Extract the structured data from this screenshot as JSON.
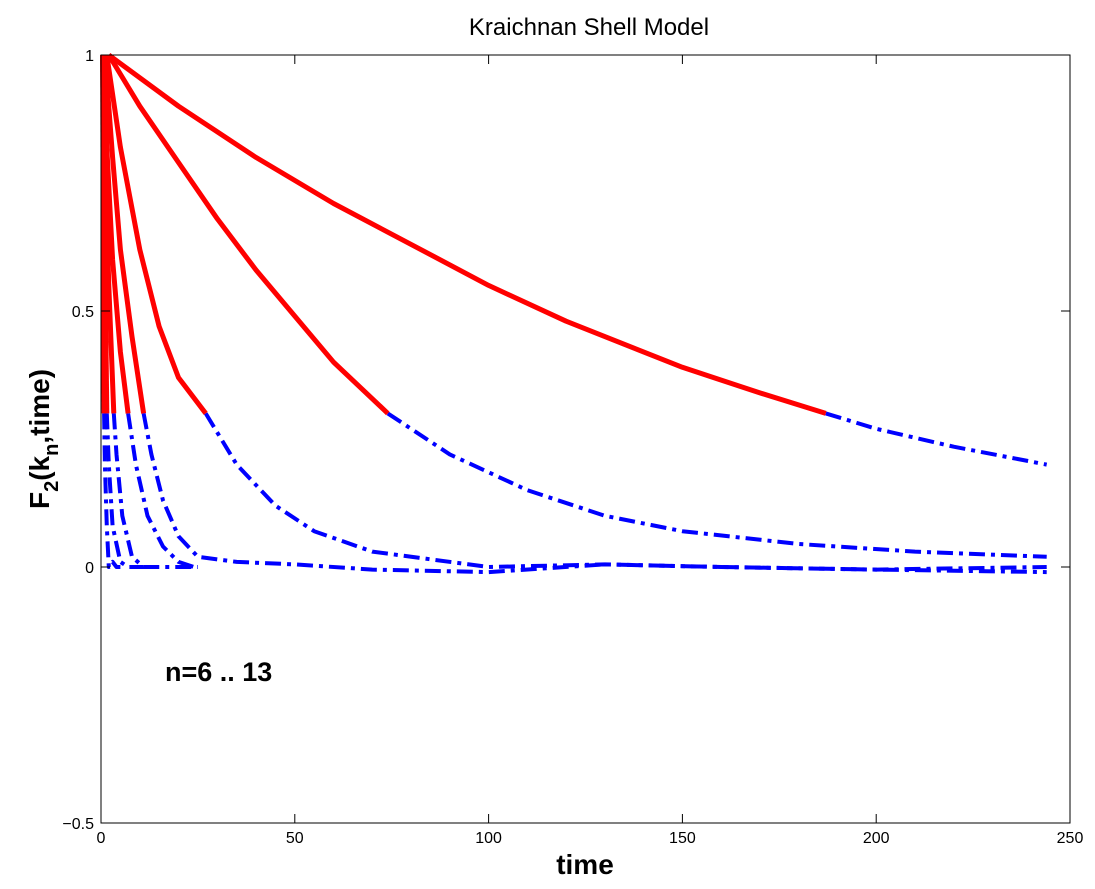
{
  "chart_data": {
    "type": "line",
    "title": "Kraichnan Shell Model",
    "xlabel": "time",
    "ylabel_parts": {
      "main": "F",
      "sub1": "2",
      "mid": "(k",
      "sub2": "n",
      "end": ",time)"
    },
    "xlim": [
      0,
      250
    ],
    "ylim": [
      -0.5,
      1
    ],
    "xticks": [
      0,
      50,
      100,
      150,
      200,
      250
    ],
    "yticks": [
      -0.5,
      0,
      0.5,
      1
    ],
    "ytick_labels": [
      "−0.5",
      "0",
      "0.5",
      "1"
    ],
    "xtick_labels": [
      "0",
      "50",
      "100",
      "150",
      "200",
      "250"
    ],
    "grid": false,
    "annotation": "n=6 .. 13",
    "colors": {
      "solid": "#ff0000",
      "dashdot": "#0000ff",
      "axes": "#000000"
    },
    "series": [
      {
        "solid": [
          [
            0.4,
            1.0
          ],
          [
            0.8,
            0.3
          ]
        ],
        "dashdot": [
          [
            0.8,
            0.3
          ],
          [
            1.0,
            0.2
          ],
          [
            1.5,
            0.08
          ],
          [
            2.0,
            0.0
          ],
          [
            3.0,
            0.01
          ],
          [
            4.0,
            0.0
          ],
          [
            5.0,
            0.0
          ]
        ]
      },
      {
        "solid": [
          [
            0.4,
            1.0
          ],
          [
            1.5,
            0.3
          ]
        ],
        "dashdot": [
          [
            1.5,
            0.3
          ],
          [
            2.0,
            0.2
          ],
          [
            3.0,
            0.08
          ],
          [
            5.0,
            0.01
          ],
          [
            7.0,
            0.0
          ],
          [
            9.0,
            0.0
          ],
          [
            11.0,
            0.0
          ]
        ]
      },
      {
        "solid": [
          [
            0.5,
            1.0
          ],
          [
            1.0,
            0.8
          ],
          [
            2.0,
            0.55
          ],
          [
            3.3,
            0.3
          ]
        ],
        "dashdot": [
          [
            3.3,
            0.3
          ],
          [
            4.0,
            0.22
          ],
          [
            5.5,
            0.1
          ],
          [
            8.0,
            0.02
          ],
          [
            11.0,
            0.0
          ],
          [
            15.0,
            0.0
          ],
          [
            20.0,
            0.0
          ],
          [
            25.0,
            0.0
          ]
        ]
      },
      {
        "solid": [
          [
            0.7,
            1.0
          ],
          [
            1.5,
            0.82
          ],
          [
            3.0,
            0.6
          ],
          [
            5.0,
            0.42
          ],
          [
            7.0,
            0.3
          ]
        ],
        "dashdot": [
          [
            7.0,
            0.3
          ],
          [
            9.0,
            0.2
          ],
          [
            12.0,
            0.1
          ],
          [
            16.0,
            0.04
          ],
          [
            20.0,
            0.01
          ],
          [
            24.0,
            0.0
          ]
        ]
      },
      {
        "solid": [
          [
            1.0,
            1.0
          ],
          [
            3.0,
            0.8
          ],
          [
            5.0,
            0.62
          ],
          [
            8.0,
            0.45
          ],
          [
            11.0,
            0.3
          ]
        ],
        "dashdot": [
          [
            11.0,
            0.3
          ],
          [
            13.0,
            0.22
          ],
          [
            16.0,
            0.13
          ],
          [
            20.0,
            0.06
          ],
          [
            25.0,
            0.02
          ],
          [
            35.0,
            0.01
          ],
          [
            50.0,
            0.005
          ],
          [
            70.0,
            -0.005
          ],
          [
            100.0,
            -0.01
          ],
          [
            130.0,
            0.005
          ],
          [
            160.0,
            0.0
          ],
          [
            200.0,
            -0.005
          ],
          [
            244.0,
            0.0
          ]
        ]
      },
      {
        "solid": [
          [
            1.5,
            1.0
          ],
          [
            5.0,
            0.82
          ],
          [
            10.0,
            0.62
          ],
          [
            15.0,
            0.47
          ],
          [
            20.0,
            0.37
          ],
          [
            27.0,
            0.3
          ]
        ],
        "dashdot": [
          [
            27.0,
            0.3
          ],
          [
            35.0,
            0.2
          ],
          [
            45.0,
            0.12
          ],
          [
            55.0,
            0.07
          ],
          [
            70.0,
            0.03
          ],
          [
            100.0,
            0.0
          ],
          [
            130.0,
            0.005
          ],
          [
            160.0,
            0.0
          ],
          [
            200.0,
            -0.005
          ],
          [
            244.0,
            -0.01
          ]
        ]
      },
      {
        "solid": [
          [
            2.0,
            1.0
          ],
          [
            10.0,
            0.9
          ],
          [
            20.0,
            0.79
          ],
          [
            30.0,
            0.68
          ],
          [
            40.0,
            0.58
          ],
          [
            50.0,
            0.49
          ],
          [
            60.0,
            0.4
          ],
          [
            74.0,
            0.3
          ]
        ],
        "dashdot": [
          [
            74.0,
            0.3
          ],
          [
            90.0,
            0.22
          ],
          [
            110.0,
            0.15
          ],
          [
            130.0,
            0.1
          ],
          [
            150.0,
            0.07
          ],
          [
            180.0,
            0.045
          ],
          [
            210.0,
            0.03
          ],
          [
            244.0,
            0.02
          ]
        ]
      },
      {
        "solid": [
          [
            2.0,
            1.0
          ],
          [
            20.0,
            0.9
          ],
          [
            40.0,
            0.8
          ],
          [
            60.0,
            0.71
          ],
          [
            80.0,
            0.63
          ],
          [
            100.0,
            0.55
          ],
          [
            120.0,
            0.48
          ],
          [
            150.0,
            0.39
          ],
          [
            170.0,
            0.34
          ],
          [
            187.0,
            0.3
          ]
        ],
        "dashdot": [
          [
            187.0,
            0.3
          ],
          [
            200.0,
            0.27
          ],
          [
            220.0,
            0.235
          ],
          [
            244.0,
            0.2
          ]
        ]
      }
    ]
  }
}
